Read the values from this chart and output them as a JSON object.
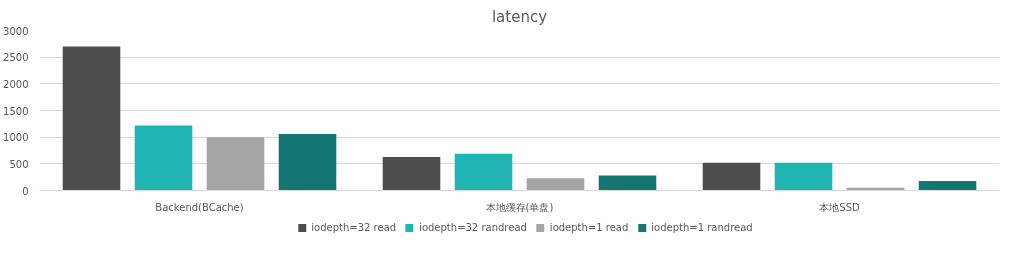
{
  "chart_data": {
    "type": "bar",
    "title": "latency",
    "categories": [
      "Backend(BCache)",
      "本地缓存(单盘)",
      "本地SSD"
    ],
    "series": [
      {
        "name": "iodepth=32 read",
        "color": "#4d4d4d",
        "values": [
          2700,
          630,
          520
        ]
      },
      {
        "name": "iodepth=32 randread",
        "color": "#20b5b3",
        "values": [
          1220,
          690,
          520
        ]
      },
      {
        "name": "iodepth=1 read",
        "color": "#a5a5a5",
        "values": [
          1000,
          230,
          50
        ]
      },
      {
        "name": "iodepth=1 randread",
        "color": "#137672",
        "values": [
          1060,
          280,
          180
        ]
      }
    ],
    "ylim": [
      0,
      3000
    ],
    "yticks": [
      0,
      500,
      1000,
      1500,
      2000,
      2500,
      3000
    ],
    "grid": "y",
    "legend": "bottom"
  }
}
